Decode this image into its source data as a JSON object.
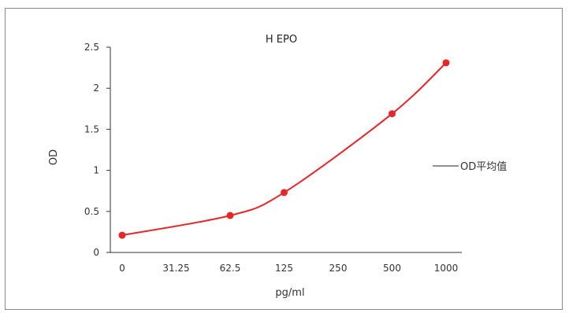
{
  "chart_data": {
    "type": "line",
    "title": "H EPO",
    "xlabel": "pg/ml",
    "ylabel": "OD",
    "categories": [
      "0",
      "31.25",
      "62.5",
      "125",
      "250",
      "500",
      "1000"
    ],
    "series": [
      {
        "name": "OD平均值",
        "color": "#e8262a",
        "points": [
          {
            "x": "0",
            "y": 0.21
          },
          {
            "x": "62.5",
            "y": 0.45
          },
          {
            "x": "125",
            "y": 0.73
          },
          {
            "x": "500",
            "y": 1.69
          },
          {
            "x": "1000",
            "y": 2.31
          }
        ]
      }
    ],
    "yticks": [
      "0",
      "0.5",
      "1",
      "1.5",
      "2",
      "2.5"
    ],
    "ylim": [
      0,
      2.5
    ],
    "grid": false,
    "legend_position": "right"
  }
}
